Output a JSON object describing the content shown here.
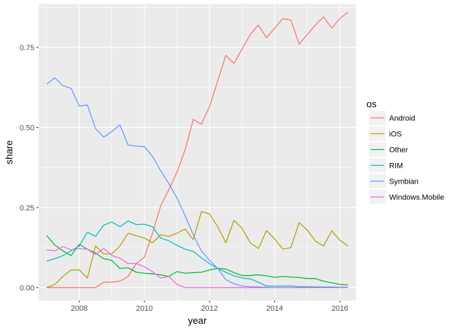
{
  "chart_data": {
    "type": "line",
    "xlabel": "year",
    "ylabel": "share",
    "xlim": [
      2006.75,
      2016.5
    ],
    "ylim": [
      -0.04,
      0.885
    ],
    "x_ticks": [
      2008,
      2010,
      2012,
      2014,
      2016
    ],
    "x_tick_labels": [
      "2008",
      "2010",
      "2012",
      "2014",
      "2016"
    ],
    "y_ticks": [
      0,
      0.25,
      0.5,
      0.75
    ],
    "y_tick_labels": [
      "0.00",
      "0.25",
      "0.50",
      "0.75"
    ],
    "grid": true,
    "legend": {
      "title": "os",
      "position": "right"
    },
    "series": [
      {
        "name": "Android",
        "color": "#F8766D",
        "x": [
          2007.0,
          2007.25,
          2007.5,
          2007.75,
          2008.0,
          2008.25,
          2008.5,
          2008.75,
          2009.0,
          2009.25,
          2009.5,
          2009.75,
          2010.0,
          2010.25,
          2010.5,
          2010.75,
          2011.0,
          2011.25,
          2011.5,
          2011.75,
          2012.0,
          2012.25,
          2012.5,
          2012.75,
          2013.0,
          2013.25,
          2013.5,
          2013.75,
          2014.0,
          2014.25,
          2014.5,
          2014.75,
          2015.0,
          2015.25,
          2015.5,
          2015.75,
          2016.0,
          2016.25
        ],
        "y": [
          0.0,
          0.0,
          0.0,
          0.0,
          0.0,
          0.0,
          0.0,
          0.017,
          0.017,
          0.02,
          0.035,
          0.075,
          0.095,
          0.17,
          0.255,
          0.305,
          0.36,
          0.43,
          0.525,
          0.51,
          0.565,
          0.645,
          0.725,
          0.7,
          0.745,
          0.79,
          0.82,
          0.78,
          0.81,
          0.84,
          0.835,
          0.76,
          0.79,
          0.82,
          0.845,
          0.81,
          0.84,
          0.86
        ]
      },
      {
        "name": "iOS",
        "color": "#B79F00",
        "x": [
          2007.0,
          2007.25,
          2007.5,
          2007.75,
          2008.0,
          2008.25,
          2008.5,
          2008.75,
          2009.0,
          2009.25,
          2009.5,
          2009.75,
          2010.0,
          2010.25,
          2010.5,
          2010.75,
          2011.0,
          2011.25,
          2011.5,
          2011.75,
          2012.0,
          2012.25,
          2012.5,
          2012.75,
          2013.0,
          2013.25,
          2013.5,
          2013.75,
          2014.0,
          2014.25,
          2014.5,
          2014.75,
          2015.0,
          2015.25,
          2015.5,
          2015.75,
          2016.0,
          2016.25
        ],
        "y": [
          0.0,
          0.01,
          0.035,
          0.055,
          0.055,
          0.03,
          0.13,
          0.105,
          0.105,
          0.13,
          0.17,
          0.162,
          0.155,
          0.14,
          0.165,
          0.16,
          0.17,
          0.183,
          0.15,
          0.237,
          0.23,
          0.19,
          0.14,
          0.21,
          0.185,
          0.14,
          0.122,
          0.178,
          0.152,
          0.12,
          0.125,
          0.203,
          0.18,
          0.145,
          0.13,
          0.177,
          0.148,
          0.13
        ]
      },
      {
        "name": "Other",
        "color": "#00BA38",
        "x": [
          2007.0,
          2007.25,
          2007.5,
          2007.75,
          2008.0,
          2008.25,
          2008.5,
          2008.75,
          2009.0,
          2009.25,
          2009.5,
          2009.75,
          2010.0,
          2010.25,
          2010.5,
          2010.75,
          2011.0,
          2011.25,
          2011.5,
          2011.75,
          2012.0,
          2012.25,
          2012.5,
          2012.75,
          2013.0,
          2013.25,
          2013.5,
          2013.75,
          2014.0,
          2014.25,
          2014.5,
          2014.75,
          2015.0,
          2015.25,
          2015.5,
          2015.75,
          2016.0,
          2016.25
        ],
        "y": [
          0.163,
          0.133,
          0.115,
          0.1,
          0.135,
          0.12,
          0.108,
          0.09,
          0.085,
          0.06,
          0.062,
          0.048,
          0.045,
          0.043,
          0.04,
          0.035,
          0.05,
          0.045,
          0.047,
          0.048,
          0.055,
          0.06,
          0.058,
          0.047,
          0.038,
          0.038,
          0.04,
          0.037,
          0.032,
          0.035,
          0.033,
          0.032,
          0.028,
          0.028,
          0.02,
          0.015,
          0.01,
          0.008
        ]
      },
      {
        "name": "RIM",
        "color": "#00BFC4",
        "x": [
          2007.0,
          2007.25,
          2007.5,
          2007.75,
          2008.0,
          2008.25,
          2008.5,
          2008.75,
          2009.0,
          2009.25,
          2009.5,
          2009.75,
          2010.0,
          2010.25,
          2010.5,
          2010.75,
          2011.0,
          2011.25,
          2011.5,
          2011.75,
          2012.0,
          2012.25,
          2012.5,
          2012.75,
          2013.0,
          2013.25,
          2013.5,
          2013.75,
          2014.0,
          2014.25,
          2014.5,
          2014.75,
          2015.0,
          2015.25,
          2015.5,
          2015.75,
          2016.0,
          2016.25
        ],
        "y": [
          0.083,
          0.09,
          0.1,
          0.115,
          0.13,
          0.173,
          0.16,
          0.195,
          0.205,
          0.19,
          0.208,
          0.197,
          0.198,
          0.19,
          0.155,
          0.146,
          0.132,
          0.12,
          0.113,
          0.093,
          0.075,
          0.06,
          0.048,
          0.037,
          0.03,
          0.027,
          0.017,
          0.005,
          0.005,
          0.005,
          0.005,
          0.003,
          0.003,
          0.002,
          0.002,
          0.002,
          0.001,
          0.001
        ]
      },
      {
        "name": "Symbian",
        "color": "#619CFF",
        "x": [
          2007.0,
          2007.25,
          2007.5,
          2007.75,
          2008.0,
          2008.25,
          2008.5,
          2008.75,
          2009.0,
          2009.25,
          2009.5,
          2009.75,
          2010.0,
          2010.25,
          2010.5,
          2010.75,
          2011.0,
          2011.25,
          2011.5,
          2011.75,
          2012.0,
          2012.25,
          2012.5,
          2012.75,
          2013.0,
          2013.25,
          2013.5,
          2013.75,
          2014.0,
          2014.25,
          2014.5,
          2014.75,
          2015.0,
          2015.25,
          2015.5,
          2015.75,
          2016.0,
          2016.25
        ],
        "y": [
          0.635,
          0.655,
          0.63,
          0.622,
          0.567,
          0.57,
          0.497,
          0.47,
          0.487,
          0.508,
          0.445,
          0.442,
          0.44,
          0.41,
          0.365,
          0.325,
          0.28,
          0.225,
          0.165,
          0.115,
          0.085,
          0.06,
          0.025,
          0.012,
          0.005,
          0.003,
          0.002,
          0.001,
          0.0,
          0.0,
          0.0,
          0.0,
          0.0,
          0.0,
          0.0,
          0.0,
          0.0,
          0.0
        ]
      },
      {
        "name": "Windows.Mobile",
        "color": "#F564E3",
        "x": [
          2007.0,
          2007.25,
          2007.5,
          2007.75,
          2008.0,
          2008.25,
          2008.5,
          2008.75,
          2009.0,
          2009.25,
          2009.5,
          2009.75,
          2010.0,
          2010.25,
          2010.5,
          2010.75,
          2011.0,
          2011.25,
          2011.5,
          2011.75,
          2012.0,
          2012.25,
          2012.5,
          2012.75,
          2013.0,
          2013.25,
          2013.5,
          2013.75,
          2014.0,
          2014.25,
          2014.5,
          2014.75,
          2015.0,
          2015.25,
          2015.5,
          2015.75,
          2016.0,
          2016.25
        ],
        "y": [
          0.118,
          0.115,
          0.128,
          0.118,
          0.122,
          0.12,
          0.103,
          0.123,
          0.1,
          0.092,
          0.075,
          0.075,
          0.065,
          0.05,
          0.03,
          0.035,
          0.01,
          0.0,
          0.0,
          0.0,
          0.0,
          0.0,
          0.0,
          0.0,
          0.0,
          0.0,
          0.0,
          0.0,
          0.0,
          0.0,
          0.0,
          0.0,
          0.0,
          0.0,
          0.0,
          0.0,
          0.0,
          0.0
        ]
      }
    ]
  }
}
